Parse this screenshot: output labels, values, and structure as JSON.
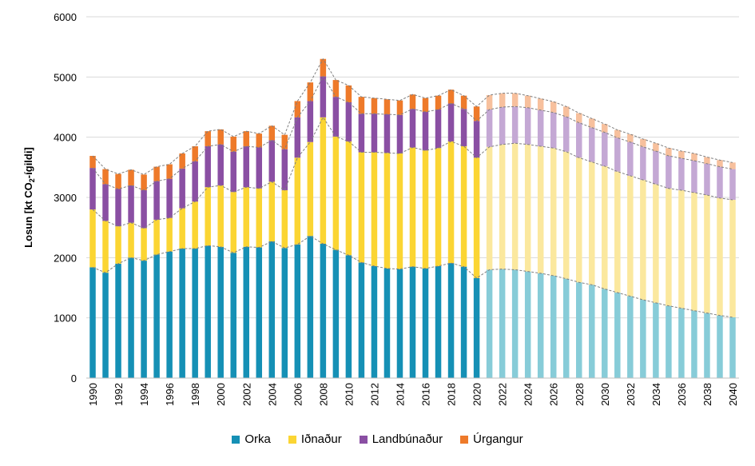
{
  "chart_data": {
    "type": "bar",
    "stacked": true,
    "ylabel": "Losun  [kt CO2-ígildi]",
    "ylim": [
      0,
      6000
    ],
    "yticks": [
      0,
      1000,
      2000,
      3000,
      4000,
      5000,
      6000
    ],
    "grid": true,
    "legend_position": "bottom",
    "categories": [
      "1990",
      "1991",
      "1992",
      "1993",
      "1994",
      "1995",
      "1996",
      "1997",
      "1998",
      "1999",
      "2000",
      "2001",
      "2002",
      "2003",
      "2004",
      "2005",
      "2006",
      "2007",
      "2008",
      "2009",
      "2010",
      "2011",
      "2012",
      "2013",
      "2014",
      "2015",
      "2016",
      "2017",
      "2018",
      "2019",
      "2020",
      "2021",
      "2022",
      "2023",
      "2024",
      "2025",
      "2026",
      "2027",
      "2028",
      "2029",
      "2030",
      "2031",
      "2032",
      "2033",
      "2034",
      "2035",
      "2036",
      "2037",
      "2038",
      "2039",
      "2040"
    ],
    "tick_labels": [
      "1990",
      "1992",
      "1994",
      "1996",
      "1998",
      "2000",
      "2002",
      "2004",
      "2006",
      "2008",
      "2010",
      "2012",
      "2014",
      "2016",
      "2018",
      "2020",
      "2022",
      "2024",
      "2026",
      "2028",
      "2030",
      "2032",
      "2034",
      "2036",
      "2038",
      "2040"
    ],
    "projection_start": "2021",
    "series": [
      {
        "name": "Orka",
        "color": "#1590b5",
        "projection_color": "#87ccd8",
        "values": [
          1840,
          1750,
          1900,
          2000,
          1950,
          2050,
          2100,
          2150,
          2150,
          2200,
          2180,
          2080,
          2180,
          2170,
          2270,
          2160,
          2220,
          2360,
          2230,
          2130,
          2040,
          1920,
          1860,
          1820,
          1810,
          1850,
          1820,
          1860,
          1910,
          1850,
          1660,
          1800,
          1810,
          1800,
          1770,
          1740,
          1700,
          1650,
          1590,
          1550,
          1480,
          1420,
          1360,
          1300,
          1250,
          1200,
          1160,
          1120,
          1080,
          1040,
          1010
        ]
      },
      {
        "name": "Iðnaður",
        "color": "#fbd533",
        "projection_color": "#fbe89e",
        "values": [
          960,
          860,
          620,
          580,
          540,
          580,
          560,
          670,
          780,
          970,
          1020,
          1010,
          990,
          980,
          990,
          960,
          1440,
          1560,
          2100,
          1880,
          1890,
          1830,
          1890,
          1920,
          1920,
          1980,
          1960,
          1960,
          2020,
          2000,
          2000,
          2040,
          2070,
          2100,
          2110,
          2110,
          2120,
          2110,
          2070,
          2040,
          2040,
          2010,
          2000,
          1990,
          1970,
          1950,
          1960,
          1960,
          1960,
          1950,
          1950
        ]
      },
      {
        "name": "Landbúnaður",
        "color": "#8a4fa3",
        "projection_color": "#c4a8d4",
        "values": [
          690,
          610,
          620,
          620,
          630,
          640,
          650,
          660,
          670,
          680,
          680,
          670,
          680,
          680,
          690,
          680,
          670,
          680,
          680,
          660,
          650,
          640,
          640,
          640,
          640,
          640,
          640,
          640,
          630,
          620,
          610,
          620,
          620,
          610,
          610,
          600,
          590,
          580,
          580,
          570,
          560,
          560,
          560,
          550,
          550,
          540,
          530,
          530,
          520,
          520,
          510
        ]
      },
      {
        "name": "Úrgangur",
        "color": "#ee7a2a",
        "projection_color": "#f7c09d",
        "values": [
          200,
          250,
          250,
          260,
          260,
          240,
          240,
          250,
          250,
          250,
          250,
          250,
          250,
          230,
          240,
          240,
          270,
          310,
          290,
          280,
          280,
          280,
          260,
          250,
          240,
          240,
          230,
          230,
          230,
          220,
          240,
          240,
          230,
          220,
          200,
          190,
          180,
          170,
          160,
          150,
          140,
          130,
          130,
          130,
          130,
          130,
          120,
          120,
          110,
          110,
          110
        ]
      }
    ]
  }
}
